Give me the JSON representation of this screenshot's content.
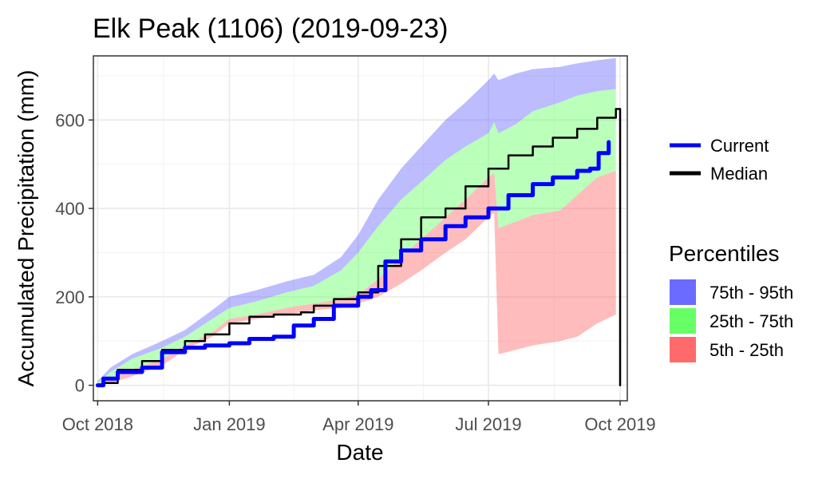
{
  "chart_data": {
    "type": "area",
    "title": "Elk Peak (1106) (2019-09-23)",
    "xlabel": "Date",
    "ylabel": "Accumulated Precipitation (mm)",
    "x_range": [
      "2018-09-28",
      "2019-10-06"
    ],
    "ylim": [
      -35,
      745
    ],
    "grid": true,
    "x_ticks": [
      {
        "date": "2018-10-01",
        "label": "Oct 2018"
      },
      {
        "date": "2019-01-01",
        "label": "Jan 2019"
      },
      {
        "date": "2019-04-01",
        "label": "Apr 2019"
      },
      {
        "date": "2019-07-01",
        "label": "Jul 2019"
      },
      {
        "date": "2019-10-01",
        "label": "Oct 2019"
      }
    ],
    "y_ticks": [
      0,
      200,
      400,
      600
    ],
    "legend_lines": [
      {
        "name": "Current",
        "color": "#0000ff"
      },
      {
        "name": "Median",
        "color": "#000000"
      }
    ],
    "percentiles_title": "Percentiles",
    "legend_bands": [
      {
        "name": "75th - 95th",
        "color": "#6b6bff"
      },
      {
        "name": "25th - 75th",
        "color": "#66ff66"
      },
      {
        "name": "5th - 25th",
        "color": "#ff6b6b"
      }
    ],
    "bands": {
      "x": [
        "2018-10-01",
        "2018-10-10",
        "2018-10-25",
        "2018-11-15",
        "2018-12-01",
        "2018-12-20",
        "2019-01-01",
        "2019-01-20",
        "2019-02-10",
        "2019-03-01",
        "2019-03-20",
        "2019-04-01",
        "2019-04-15",
        "2019-05-01",
        "2019-05-15",
        "2019-06-01",
        "2019-06-15",
        "2019-07-01",
        "2019-07-05",
        "2019-07-08",
        "2019-07-20",
        "2019-08-01",
        "2019-08-20",
        "2019-09-01",
        "2019-09-15",
        "2019-09-28"
      ],
      "p5": [
        0,
        5,
        20,
        45,
        80,
        110,
        140,
        150,
        160,
        170,
        175,
        185,
        200,
        230,
        260,
        300,
        330,
        380,
        390,
        70,
        80,
        90,
        100,
        110,
        140,
        160
      ],
      "p25": [
        0,
        15,
        35,
        60,
        90,
        120,
        150,
        160,
        175,
        185,
        195,
        205,
        240,
        290,
        330,
        380,
        420,
        470,
        480,
        355,
        370,
        385,
        395,
        430,
        470,
        485
      ],
      "p75": [
        5,
        30,
        60,
        85,
        110,
        150,
        175,
        190,
        210,
        225,
        260,
        300,
        360,
        420,
        460,
        510,
        540,
        570,
        595,
        570,
        590,
        620,
        640,
        655,
        665,
        670
      ],
      "p95": [
        10,
        40,
        70,
        100,
        125,
        170,
        200,
        215,
        235,
        250,
        290,
        340,
        420,
        490,
        540,
        600,
        640,
        690,
        705,
        690,
        705,
        715,
        720,
        728,
        735,
        740
      ]
    },
    "series": [
      {
        "name": "Median",
        "x": [
          "2018-10-01",
          "2018-10-05",
          "2018-10-15",
          "2018-11-01",
          "2018-11-15",
          "2018-12-01",
          "2018-12-15",
          "2019-01-01",
          "2019-01-15",
          "2019-02-01",
          "2019-02-20",
          "2019-03-01",
          "2019-03-15",
          "2019-04-01",
          "2019-04-15",
          "2019-05-01",
          "2019-05-15",
          "2019-06-01",
          "2019-06-15",
          "2019-07-01",
          "2019-07-15",
          "2019-08-01",
          "2019-08-15",
          "2019-09-01",
          "2019-09-15",
          "2019-09-28",
          "2019-09-29",
          "2019-10-01"
        ],
        "values": [
          0,
          5,
          35,
          55,
          80,
          100,
          115,
          140,
          155,
          160,
          165,
          180,
          195,
          210,
          270,
          330,
          380,
          400,
          450,
          490,
          520,
          540,
          560,
          580,
          605,
          625,
          625,
          0
        ]
      },
      {
        "name": "Current",
        "x": [
          "2018-10-01",
          "2018-10-05",
          "2018-10-15",
          "2018-11-01",
          "2018-11-15",
          "2018-12-01",
          "2018-12-15",
          "2019-01-01",
          "2019-01-15",
          "2019-02-01",
          "2019-02-15",
          "2019-03-01",
          "2019-03-15",
          "2019-04-01",
          "2019-04-10",
          "2019-04-20",
          "2019-05-01",
          "2019-05-15",
          "2019-06-01",
          "2019-06-15",
          "2019-07-01",
          "2019-07-15",
          "2019-08-01",
          "2019-08-15",
          "2019-09-01",
          "2019-09-10",
          "2019-09-16",
          "2019-09-23"
        ],
        "values": [
          0,
          15,
          30,
          40,
          75,
          85,
          90,
          95,
          105,
          110,
          135,
          150,
          180,
          200,
          215,
          280,
          305,
          330,
          360,
          380,
          400,
          430,
          455,
          470,
          485,
          490,
          525,
          550
        ]
      }
    ]
  }
}
